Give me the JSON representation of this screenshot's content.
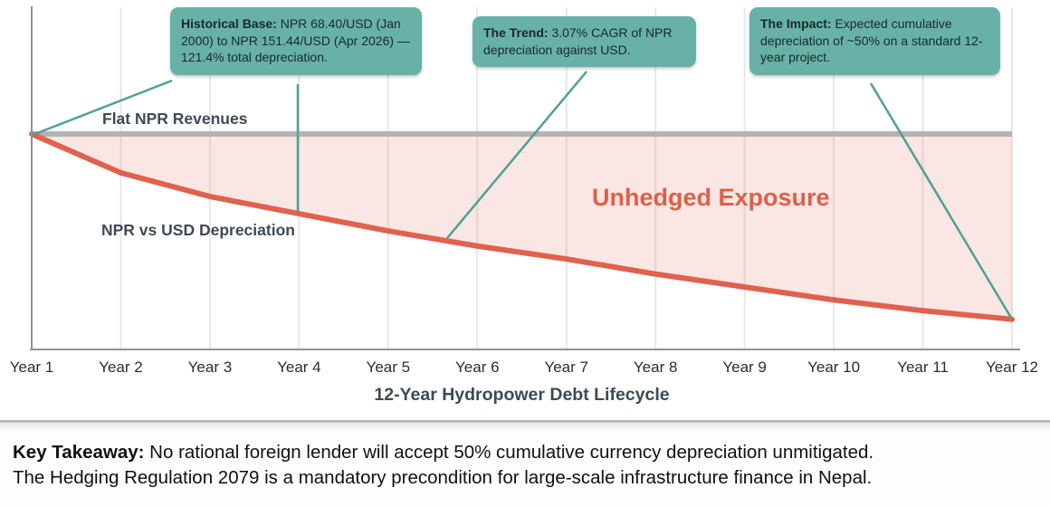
{
  "colors": {
    "callout_bg": "#68b1a7",
    "leader_line": "#4da196",
    "flat_line": "#b3b3b3",
    "depreciation_line": "#e0614d",
    "exposure_fill": "#f8dcd6",
    "exposure_text": "#dd604b",
    "slate_text": "#3e4a54",
    "axis": "#8e9398",
    "grid": "#e7e7e7"
  },
  "chart_data": {
    "type": "area",
    "x": [
      "Year 1",
      "Year 2",
      "Year 3",
      "Year 4",
      "Year 5",
      "Year 6",
      "Year 7",
      "Year 8",
      "Year 9",
      "Year 10",
      "Year 11",
      "Year 12"
    ],
    "xlabel": "12-Year Hydropower Debt Lifecycle",
    "ylim": [
      0,
      1.6
    ],
    "grid": "vertical",
    "legend_position": "inline-labels",
    "series": [
      {
        "name": "Flat NPR Revenues",
        "values": [
          1.0,
          1.0,
          1.0,
          1.0,
          1.0,
          1.0,
          1.0,
          1.0,
          1.0,
          1.0,
          1.0,
          1.0
        ],
        "color": "#b3b3b3"
      },
      {
        "name": "NPR vs USD Depreciation",
        "values": [
          1.0,
          0.82,
          0.71,
          0.63,
          0.55,
          0.48,
          0.42,
          0.35,
          0.29,
          0.23,
          0.18,
          0.14
        ],
        "color": "#e0614d"
      }
    ],
    "area_label": "Unhedged Exposure",
    "annotations": [
      {
        "label": "Historical Base:",
        "text": " NPR 68.40/USD (Jan 2000) to NPR 151.44/USD (Apr 2026) — 121.4% total depreciation."
      },
      {
        "label": "The Trend:",
        "text": " 3.07% CAGR of NPR depreciation against USD."
      },
      {
        "label": "The Impact:",
        "text": " Expected cumulative depreciation of ~50% on a standard 12-year project."
      }
    ]
  },
  "takeaway": {
    "bold": "Key Takeaway:",
    "line1": " No rational foreign lender will accept 50% cumulative currency depreciation unmitigated.",
    "line2": "The Hedging Regulation 2079 is a mandatory precondition for large-scale infrastructure finance in Nepal."
  }
}
